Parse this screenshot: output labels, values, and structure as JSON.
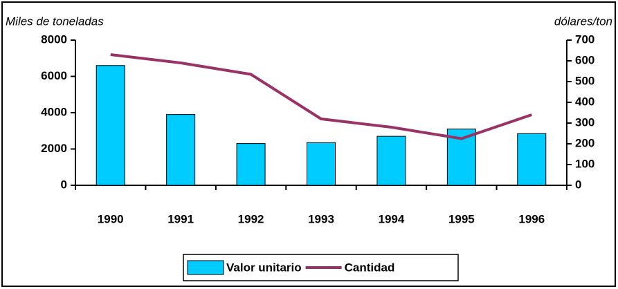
{
  "chart_data": {
    "type": "bar_line",
    "y_label": "Miles de toneladas",
    "y2_label": "dólares/ton",
    "categories": [
      "1990",
      "1991",
      "1992",
      "1993",
      "1994",
      "1995",
      "1996"
    ],
    "series": [
      {
        "name": "Valor unitario",
        "type": "bar",
        "color": "#00ccff",
        "values": [
          6600,
          3900,
          2300,
          2350,
          2700,
          3100,
          2850
        ]
      },
      {
        "name": "Cantidad",
        "type": "line",
        "axis": "y2",
        "color": "#993366",
        "values": [
          630,
          590,
          535,
          320,
          280,
          225,
          340
        ]
      }
    ],
    "ylim": [
      0,
      8000
    ],
    "yticks": [
      0,
      2000,
      4000,
      6000,
      8000
    ],
    "y2lim": [
      0,
      700
    ],
    "y2ticks": [
      0,
      100,
      200,
      300,
      400,
      500,
      600,
      700
    ]
  }
}
